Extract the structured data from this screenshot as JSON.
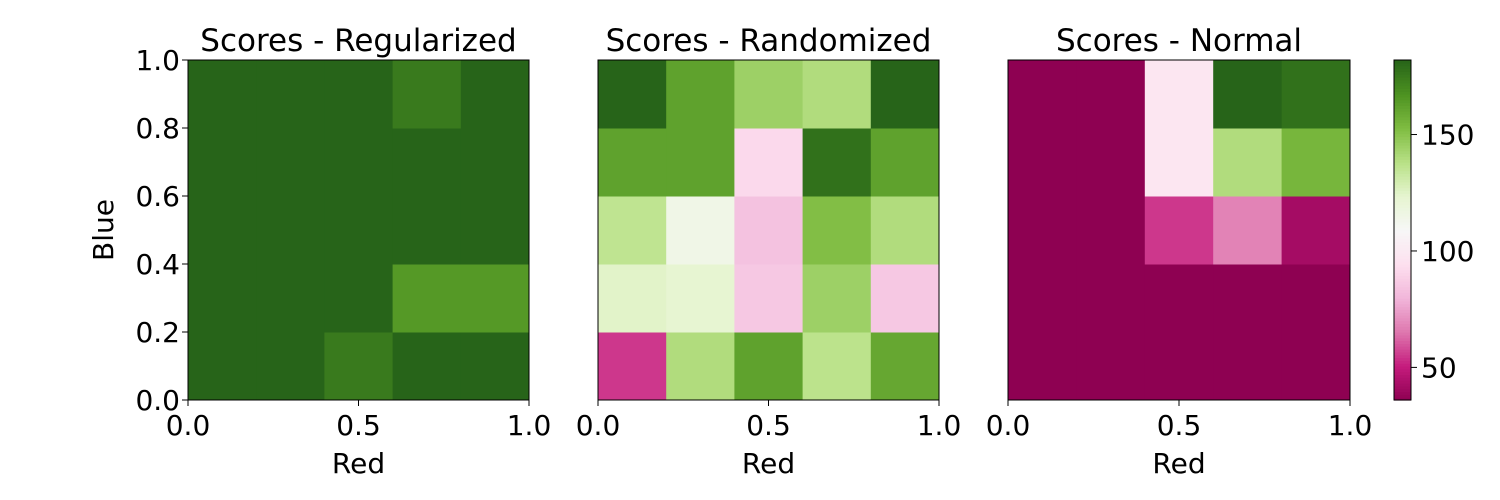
{
  "chart_data": [
    {
      "type": "heatmap",
      "title": "Scores - Regularized",
      "xlabel": "Red",
      "ylabel": "Blue",
      "xlim": [
        0,
        1
      ],
      "ylim": [
        0,
        1
      ],
      "xticks": [
        "0.0",
        "0.5",
        "1.0"
      ],
      "yticks": [
        "0.0",
        "0.2",
        "0.4",
        "0.6",
        "0.8",
        "1.0"
      ],
      "x_edges": [
        0,
        0.2,
        0.4,
        0.6,
        0.8,
        1.0
      ],
      "y_edges": [
        0,
        0.2,
        0.4,
        0.6,
        0.8,
        1.0
      ],
      "values": [
        [
          182,
          182,
          175,
          182,
          182
        ],
        [
          182,
          182,
          182,
          165,
          165
        ],
        [
          182,
          182,
          182,
          182,
          182
        ],
        [
          182,
          182,
          182,
          182,
          182
        ],
        [
          182,
          182,
          182,
          175,
          182
        ]
      ]
    },
    {
      "type": "heatmap",
      "title": "Scores - Randomized",
      "xlabel": "Red",
      "ylabel": "",
      "xlim": [
        0,
        1
      ],
      "ylim": [
        0,
        1
      ],
      "xticks": [
        "0.0",
        "0.5",
        "1.0"
      ],
      "yticks": [],
      "x_edges": [
        0,
        0.2,
        0.4,
        0.6,
        0.8,
        1.0
      ],
      "y_edges": [
        0,
        0.2,
        0.4,
        0.6,
        0.8,
        1.0
      ],
      "values": [
        [
          55,
          140,
          162,
          137,
          160
        ],
        [
          125,
          123,
          86,
          145,
          86
        ],
        [
          136,
          115,
          84,
          152,
          140
        ],
        [
          162,
          162,
          92,
          178,
          162
        ],
        [
          182,
          162,
          145,
          140,
          182
        ]
      ]
    },
    {
      "type": "heatmap",
      "title": "Scores - Normal",
      "xlabel": "Red",
      "ylabel": "",
      "xlim": [
        0,
        1
      ],
      "ylim": [
        0,
        1
      ],
      "xticks": [
        "0.0",
        "0.5",
        "1.0"
      ],
      "yticks": [],
      "x_edges": [
        0,
        0.2,
        0.4,
        0.6,
        0.8,
        1.0
      ],
      "y_edges": [
        0,
        0.2,
        0.4,
        0.6,
        0.8,
        1.0
      ],
      "values": [
        [
          36,
          36,
          36,
          36,
          36
        ],
        [
          36,
          36,
          36,
          36,
          36
        ],
        [
          36,
          36,
          55,
          68,
          42
        ],
        [
          36,
          36,
          98,
          140,
          155
        ],
        [
          36,
          36,
          98,
          182,
          178
        ]
      ]
    }
  ],
  "colorbar": {
    "cmap": "PiYG",
    "vmin": 36,
    "vmax": 182,
    "ticks": [
      50,
      100,
      150
    ],
    "tick_labels": [
      "50",
      "100",
      "150"
    ]
  }
}
